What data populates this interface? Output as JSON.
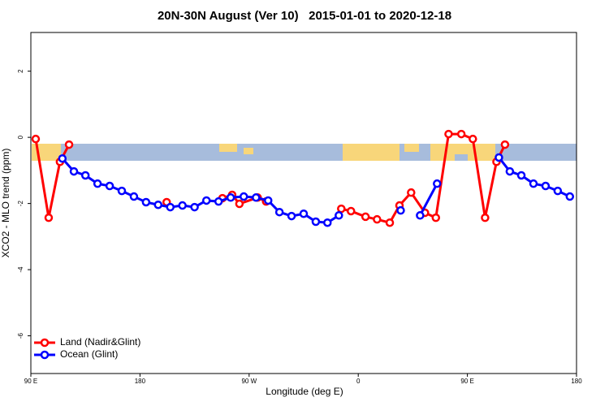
{
  "chart_data": {
    "type": "line",
    "title": "20N-30N August (Ver 10)   2015-01-01 to 2020-12-18",
    "x_label": "Longitude (deg E)",
    "y_label": "XCO2 - MLO trend (ppm)",
    "xlim": [
      90,
      540
    ],
    "ylim": [
      -7.14,
      3.17
    ],
    "xticks": [
      {
        "value": 90,
        "label": "90 E"
      },
      180,
      {
        "value": 270,
        "label": "90 W"
      },
      {
        "value": 360,
        "label": "0"
      },
      {
        "value": 450,
        "label": "90 E"
      },
      180
    ],
    "yticks": [
      2,
      0,
      -2,
      -4,
      -6
    ],
    "legend": "bottom-left",
    "series": [
      {
        "name": "Land (Nadir&Glint)",
        "color": "#ff0000",
        "x": [
          94,
          104.7,
          114,
          121.5,
          null,
          202,
          null,
          248,
          256,
          262,
          277,
          284,
          null,
          346,
          354,
          366,
          375.5,
          386,
          394,
          403.6,
          415,
          424,
          434.5,
          445,
          454.5,
          464.6,
          474,
          481
        ],
        "values": [
          -0.05,
          -2.43,
          -0.74,
          -0.22,
          null,
          -1.96,
          null,
          -1.84,
          -1.74,
          -2.01,
          -1.82,
          -1.94,
          null,
          -2.16,
          -2.23,
          -2.4,
          -2.48,
          -2.58,
          -2.06,
          -1.67,
          -2.28,
          -2.43,
          0.1,
          0.1,
          -0.05,
          -2.43,
          -0.74,
          -0.22
        ]
      },
      {
        "name": "Ocean (Glint)",
        "color": "#0000ff",
        "x": [
          116,
          125.5,
          135,
          145,
          155,
          165,
          175,
          185,
          195,
          205,
          215,
          225,
          234.8,
          244.8,
          254.8,
          265.6,
          275.7,
          285.7,
          295,
          305,
          315,
          325,
          334.6,
          344,
          null,
          395,
          null,
          411,
          425,
          null,
          476,
          485,
          494.5,
          504.5,
          514.5,
          524.5,
          534.5
        ],
        "values": [
          -0.64,
          -1.03,
          -1.15,
          -1.4,
          -1.47,
          -1.62,
          -1.79,
          -1.96,
          -2.04,
          -2.11,
          -2.06,
          -2.11,
          -1.91,
          -1.94,
          -1.82,
          -1.79,
          -1.82,
          -1.91,
          -2.26,
          -2.38,
          -2.31,
          -2.55,
          -2.58,
          -2.36,
          null,
          -2.21,
          null,
          -2.36,
          -1.4,
          null,
          -0.61,
          -1.03,
          -1.15,
          -1.4,
          -1.47,
          -1.62,
          -1.79
        ]
      }
    ]
  }
}
